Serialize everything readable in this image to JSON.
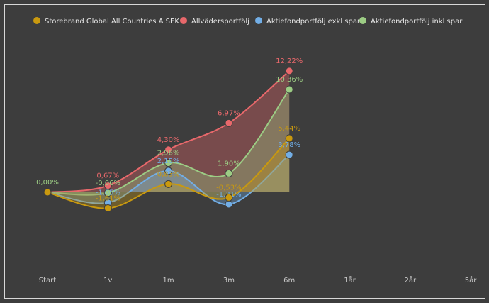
{
  "chart_data": {
    "type": "line",
    "categories": [
      "Start",
      "1v",
      "1m",
      "3m",
      "6m",
      "1år",
      "2år",
      "5år"
    ],
    "ylim": [
      -3,
      13
    ],
    "series": [
      {
        "name": "Storebrand Global All Countries A SEK",
        "color": "#c9990f",
        "values": [
          0,
          -1.61,
          0.83,
          -0.53,
          5.44,
          null,
          null,
          null
        ],
        "value_labels": [
          null,
          "-1,61%",
          "0,83%",
          "-0,53%",
          "5,44%",
          null,
          null,
          null
        ]
      },
      {
        "name": "Allvädersportfölj",
        "color": "#e8686b",
        "values": [
          0,
          0.67,
          4.3,
          6.97,
          12.22,
          null,
          null,
          null
        ],
        "value_labels": [
          null,
          "0,67%",
          "4,30%",
          "6,97%",
          "12,22%",
          null,
          null,
          null
        ]
      },
      {
        "name": "Aktiefondportfölj exkl spar",
        "color": "#72aee6",
        "values": [
          0,
          -1.05,
          2.15,
          -1.21,
          3.78,
          null,
          null,
          null
        ],
        "value_labels": [
          null,
          "-1,05%",
          "2,15%",
          "-1,21%",
          "3,78%",
          null,
          null,
          null
        ]
      },
      {
        "name": "Aktiefondportfölj inkl spar",
        "color": "#9ccc84",
        "values": [
          0,
          -0.06,
          2.96,
          1.9,
          10.36,
          null,
          null,
          null
        ],
        "value_labels": [
          "0,00%",
          "-0,06%",
          "2,96%",
          "1,90%",
          "10,36%",
          null,
          null,
          null
        ]
      }
    ]
  }
}
